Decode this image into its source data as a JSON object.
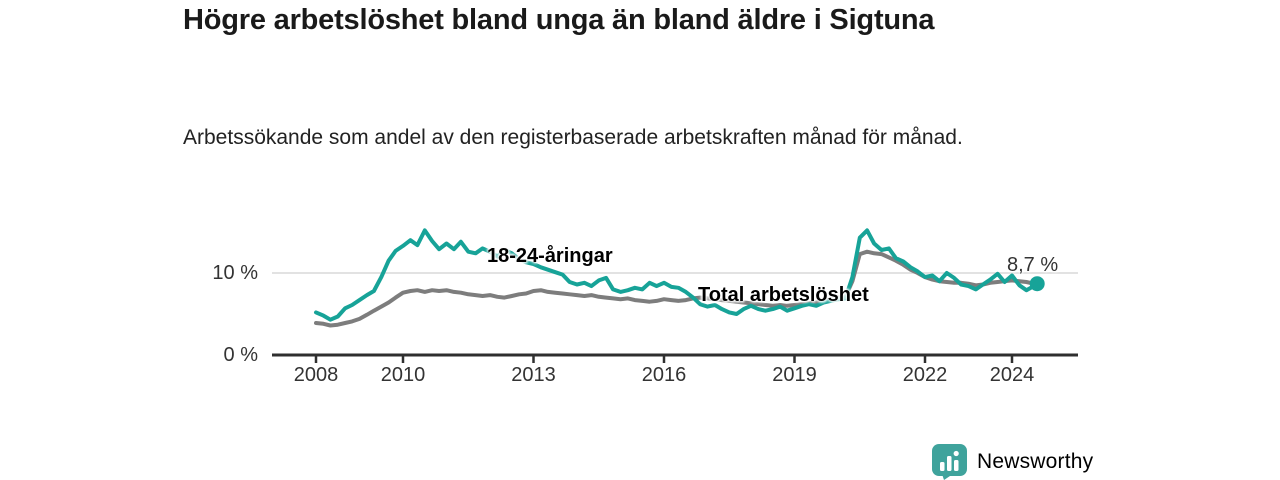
{
  "chart_data": {
    "type": "line",
    "title": "Högre arbetslöshet bland unga än bland äldre i Sigtuna",
    "subtitle": "Arbetssökande som andel av den registerbaserade arbetskraften månad för månad.",
    "xlabel": "",
    "ylabel": "",
    "unit": "%",
    "grid": "horizontal-gridline-at-10-only",
    "legend": "inline-series-labels",
    "xlim": [
      2007.9,
      2025.5
    ],
    "ylim": [
      0,
      16.5
    ],
    "x_ticks": [
      {
        "label": "2008",
        "value": 2008
      },
      {
        "label": "2010",
        "value": 2010
      },
      {
        "label": "2013",
        "value": 2013
      },
      {
        "label": "2016",
        "value": 2016
      },
      {
        "label": "2019",
        "value": 2019
      },
      {
        "label": "2022",
        "value": 2022
      },
      {
        "label": "2024",
        "value": 2024
      }
    ],
    "y_ticks": [
      {
        "label": "0 %",
        "value": 0
      },
      {
        "label": "10 %",
        "value": 10
      }
    ],
    "annotation": {
      "label": "8,7 %",
      "x": 2024.58,
      "y": 8.7
    },
    "series": [
      {
        "name": "18-24-åringar",
        "color": "#17a398",
        "points": [
          [
            2008.0,
            5.2
          ],
          [
            2008.17,
            4.8
          ],
          [
            2008.33,
            4.3
          ],
          [
            2008.5,
            4.7
          ],
          [
            2008.67,
            5.7
          ],
          [
            2008.83,
            6.1
          ],
          [
            2009.0,
            6.7
          ],
          [
            2009.17,
            7.3
          ],
          [
            2009.33,
            7.8
          ],
          [
            2009.5,
            9.5
          ],
          [
            2009.67,
            11.5
          ],
          [
            2009.83,
            12.7
          ],
          [
            2010.0,
            13.3
          ],
          [
            2010.17,
            14.0
          ],
          [
            2010.33,
            13.4
          ],
          [
            2010.5,
            15.2
          ],
          [
            2010.67,
            13.9
          ],
          [
            2010.83,
            12.9
          ],
          [
            2011.0,
            13.6
          ],
          [
            2011.17,
            12.9
          ],
          [
            2011.33,
            13.8
          ],
          [
            2011.5,
            12.6
          ],
          [
            2011.67,
            12.4
          ],
          [
            2011.83,
            13.0
          ],
          [
            2012.0,
            12.6
          ],
          [
            2012.17,
            12.0
          ],
          [
            2012.33,
            12.8
          ],
          [
            2012.5,
            12.4
          ],
          [
            2012.67,
            11.7
          ],
          [
            2012.83,
            11.3
          ],
          [
            2013.0,
            11.1
          ],
          [
            2013.17,
            10.7
          ],
          [
            2013.33,
            10.4
          ],
          [
            2013.5,
            10.1
          ],
          [
            2013.67,
            9.8
          ],
          [
            2013.83,
            8.9
          ],
          [
            2014.0,
            8.6
          ],
          [
            2014.17,
            8.8
          ],
          [
            2014.33,
            8.4
          ],
          [
            2014.5,
            9.1
          ],
          [
            2014.67,
            9.4
          ],
          [
            2014.83,
            8.0
          ],
          [
            2015.0,
            7.7
          ],
          [
            2015.17,
            7.9
          ],
          [
            2015.33,
            8.2
          ],
          [
            2015.5,
            8.0
          ],
          [
            2015.67,
            8.8
          ],
          [
            2015.83,
            8.4
          ],
          [
            2016.0,
            8.8
          ],
          [
            2016.17,
            8.3
          ],
          [
            2016.33,
            8.2
          ],
          [
            2016.5,
            7.7
          ],
          [
            2016.67,
            7.0
          ],
          [
            2016.83,
            6.2
          ],
          [
            2017.0,
            5.9
          ],
          [
            2017.17,
            6.1
          ],
          [
            2017.33,
            5.6
          ],
          [
            2017.5,
            5.2
          ],
          [
            2017.67,
            5.0
          ],
          [
            2017.83,
            5.6
          ],
          [
            2018.0,
            6.0
          ],
          [
            2018.17,
            5.6
          ],
          [
            2018.33,
            5.4
          ],
          [
            2018.5,
            5.6
          ],
          [
            2018.67,
            5.9
          ],
          [
            2018.83,
            5.4
          ],
          [
            2019.0,
            5.7
          ],
          [
            2019.17,
            6.0
          ],
          [
            2019.33,
            6.2
          ],
          [
            2019.5,
            6.0
          ],
          [
            2019.67,
            6.4
          ],
          [
            2019.83,
            6.6
          ],
          [
            2020.0,
            6.8
          ],
          [
            2020.17,
            6.9
          ],
          [
            2020.33,
            9.5
          ],
          [
            2020.5,
            14.3
          ],
          [
            2020.67,
            15.2
          ],
          [
            2020.83,
            13.6
          ],
          [
            2021.0,
            12.8
          ],
          [
            2021.17,
            13.0
          ],
          [
            2021.33,
            11.8
          ],
          [
            2021.5,
            11.4
          ],
          [
            2021.67,
            10.7
          ],
          [
            2021.83,
            10.2
          ],
          [
            2022.0,
            9.5
          ],
          [
            2022.17,
            9.7
          ],
          [
            2022.33,
            9.0
          ],
          [
            2022.5,
            10.0
          ],
          [
            2022.67,
            9.4
          ],
          [
            2022.83,
            8.6
          ],
          [
            2023.0,
            8.4
          ],
          [
            2023.17,
            8.0
          ],
          [
            2023.33,
            8.6
          ],
          [
            2023.5,
            9.2
          ],
          [
            2023.67,
            9.9
          ],
          [
            2023.83,
            8.9
          ],
          [
            2024.0,
            9.7
          ],
          [
            2024.17,
            8.5
          ],
          [
            2024.33,
            7.9
          ],
          [
            2024.5,
            8.4
          ],
          [
            2024.58,
            8.7
          ]
        ]
      },
      {
        "name": "Total arbetslöshet",
        "color": "#7d7d7d",
        "points": [
          [
            2008.0,
            3.9
          ],
          [
            2008.17,
            3.8
          ],
          [
            2008.33,
            3.6
          ],
          [
            2008.5,
            3.7
          ],
          [
            2008.67,
            3.9
          ],
          [
            2008.83,
            4.1
          ],
          [
            2009.0,
            4.4
          ],
          [
            2009.17,
            4.9
          ],
          [
            2009.33,
            5.4
          ],
          [
            2009.5,
            5.9
          ],
          [
            2009.67,
            6.4
          ],
          [
            2009.83,
            7.0
          ],
          [
            2010.0,
            7.6
          ],
          [
            2010.17,
            7.8
          ],
          [
            2010.33,
            7.9
          ],
          [
            2010.5,
            7.7
          ],
          [
            2010.67,
            7.9
          ],
          [
            2010.83,
            7.8
          ],
          [
            2011.0,
            7.9
          ],
          [
            2011.17,
            7.7
          ],
          [
            2011.33,
            7.6
          ],
          [
            2011.5,
            7.4
          ],
          [
            2011.67,
            7.3
          ],
          [
            2011.83,
            7.2
          ],
          [
            2012.0,
            7.3
          ],
          [
            2012.17,
            7.1
          ],
          [
            2012.33,
            7.0
          ],
          [
            2012.5,
            7.2
          ],
          [
            2012.67,
            7.4
          ],
          [
            2012.83,
            7.5
          ],
          [
            2013.0,
            7.8
          ],
          [
            2013.17,
            7.9
          ],
          [
            2013.33,
            7.7
          ],
          [
            2013.5,
            7.6
          ],
          [
            2013.67,
            7.5
          ],
          [
            2013.83,
            7.4
          ],
          [
            2014.0,
            7.3
          ],
          [
            2014.17,
            7.2
          ],
          [
            2014.33,
            7.3
          ],
          [
            2014.5,
            7.1
          ],
          [
            2014.67,
            7.0
          ],
          [
            2014.83,
            6.9
          ],
          [
            2015.0,
            6.8
          ],
          [
            2015.17,
            6.9
          ],
          [
            2015.33,
            6.7
          ],
          [
            2015.5,
            6.6
          ],
          [
            2015.67,
            6.5
          ],
          [
            2015.83,
            6.6
          ],
          [
            2016.0,
            6.8
          ],
          [
            2016.17,
            6.7
          ],
          [
            2016.33,
            6.6
          ],
          [
            2016.5,
            6.7
          ],
          [
            2016.67,
            6.9
          ],
          [
            2016.83,
            7.0
          ],
          [
            2017.0,
            6.9
          ],
          [
            2017.17,
            6.8
          ],
          [
            2017.33,
            6.7
          ],
          [
            2017.5,
            6.6
          ],
          [
            2017.67,
            6.5
          ],
          [
            2017.83,
            6.4
          ],
          [
            2018.0,
            6.3
          ],
          [
            2018.17,
            6.2
          ],
          [
            2018.33,
            6.1
          ],
          [
            2018.5,
            6.0
          ],
          [
            2018.67,
            6.1
          ],
          [
            2018.83,
            6.0
          ],
          [
            2019.0,
            6.1
          ],
          [
            2019.17,
            6.2
          ],
          [
            2019.33,
            6.3
          ],
          [
            2019.5,
            6.4
          ],
          [
            2019.67,
            6.6
          ],
          [
            2019.83,
            6.8
          ],
          [
            2020.0,
            7.0
          ],
          [
            2020.17,
            7.1
          ],
          [
            2020.33,
            9.0
          ],
          [
            2020.5,
            12.3
          ],
          [
            2020.67,
            12.6
          ],
          [
            2020.83,
            12.4
          ],
          [
            2021.0,
            12.3
          ],
          [
            2021.17,
            11.9
          ],
          [
            2021.33,
            11.5
          ],
          [
            2021.5,
            11.0
          ],
          [
            2021.67,
            10.4
          ],
          [
            2021.83,
            10.0
          ],
          [
            2022.0,
            9.5
          ],
          [
            2022.17,
            9.2
          ],
          [
            2022.33,
            9.0
          ],
          [
            2022.5,
            8.9
          ],
          [
            2022.67,
            8.8
          ],
          [
            2022.83,
            8.8
          ],
          [
            2023.0,
            8.7
          ],
          [
            2023.17,
            8.5
          ],
          [
            2023.33,
            8.6
          ],
          [
            2023.5,
            8.8
          ],
          [
            2023.67,
            8.9
          ],
          [
            2023.83,
            9.0
          ],
          [
            2024.0,
            9.1
          ],
          [
            2024.17,
            9.0
          ],
          [
            2024.33,
            8.9
          ],
          [
            2024.5,
            8.7
          ]
        ]
      }
    ]
  },
  "branding": {
    "logo_text": "Newsworthy",
    "logo_color": "#369e97"
  }
}
